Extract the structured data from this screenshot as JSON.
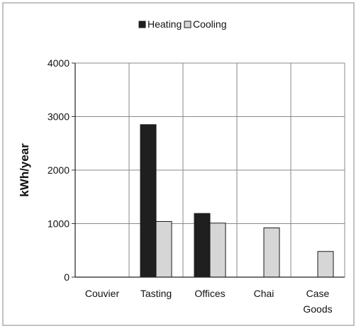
{
  "chart_data": {
    "type": "bar",
    "categories": [
      "Couvier",
      "Tasting",
      "Offices",
      "Chai",
      "Case Goods"
    ],
    "category_lines": [
      [
        "Couvier"
      ],
      [
        "Tasting"
      ],
      [
        "Offices"
      ],
      [
        "Chai"
      ],
      [
        "Case",
        "Goods"
      ]
    ],
    "series": [
      {
        "name": "Heating",
        "values": [
          0,
          2850,
          1190,
          0,
          0
        ],
        "color": "#1f1f1f"
      },
      {
        "name": "Cooling",
        "values": [
          0,
          1040,
          1010,
          920,
          480
        ],
        "color": "#d6d6d6"
      }
    ],
    "title": "",
    "xlabel": "",
    "ylabel": "kWh/year",
    "ylim": [
      0,
      4000
    ],
    "yticks": [
      0,
      1000,
      2000,
      3000,
      4000
    ],
    "grid": true,
    "legend_position": "top-center"
  }
}
